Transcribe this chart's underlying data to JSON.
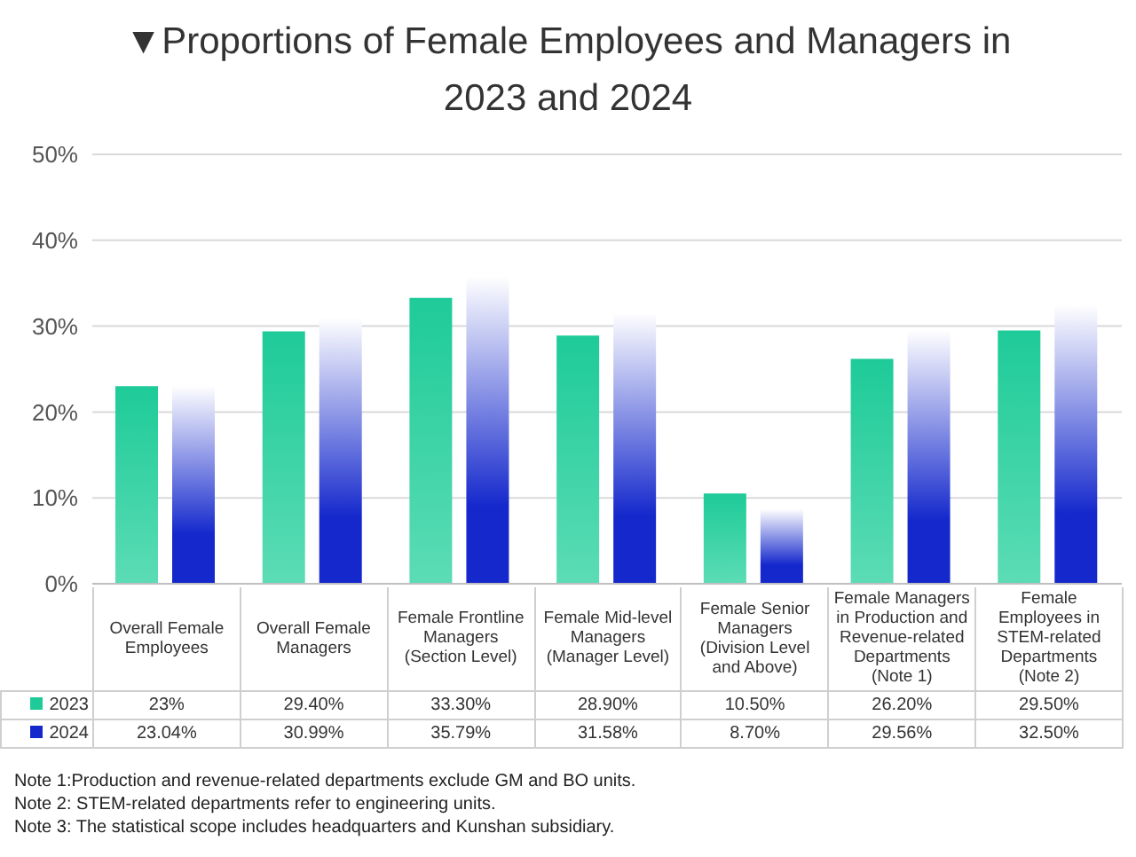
{
  "chart_data": {
    "type": "bar",
    "title": "▼Proportions of Female Employees and Managers in 2023 and 2024",
    "categories": [
      "Overall Female Employees",
      "Overall Female Managers",
      "Female Frontline Managers (Section Level)",
      "Female Mid-level Managers (Manager Level)",
      "Female Senior Managers (Division Level and Above)",
      "Female Managers in Production and Revenue-related Departments (Note 1)",
      "Female Employees in STEM-related Departments (Note 2)"
    ],
    "series": [
      {
        "name": "2023",
        "color": "#1ecb98",
        "values": [
          23,
          29.4,
          33.3,
          28.9,
          10.5,
          26.2,
          29.5
        ],
        "value_labels": [
          "23%",
          "29.40%",
          "33.30%",
          "28.90%",
          "10.50%",
          "26.20%",
          "29.50%"
        ]
      },
      {
        "name": "2024",
        "color": "#1428cc",
        "values": [
          23.04,
          30.99,
          35.79,
          31.58,
          8.7,
          29.56,
          32.5
        ],
        "value_labels": [
          "23.04%",
          "30.99%",
          "35.79%",
          "31.58%",
          "8.70%",
          "29.56%",
          "32.50%"
        ]
      }
    ],
    "ylim": [
      0,
      50
    ],
    "yticks": [
      {
        "value": 0,
        "label": "0%"
      },
      {
        "value": 10,
        "label": "10%"
      },
      {
        "value": 20,
        "label": "20%"
      },
      {
        "value": 30,
        "label": "30%"
      },
      {
        "value": 40,
        "label": "40%"
      },
      {
        "value": 50,
        "label": "50%"
      }
    ],
    "grid": "y",
    "legend": "bottom left",
    "annotations": [
      "Note 1:Production and revenue-related departments exclude GM and BO units.",
      "Note 2: STEM-related departments refer to engineering units.",
      "Note 3: The statistical scope includes headquarters and Kunshan subsidiary."
    ]
  }
}
